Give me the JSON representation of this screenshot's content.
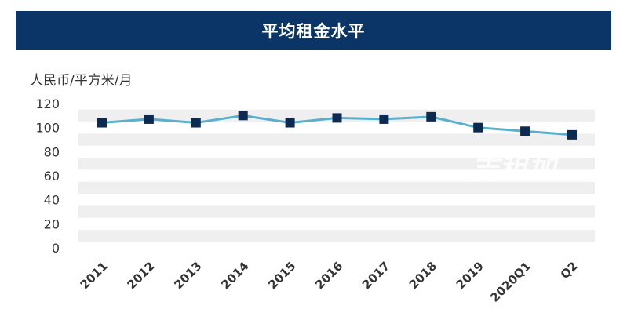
{
  "title": "平均租金水平",
  "unit_label": "人民币/平方米/月",
  "watermark": "吉租加",
  "colors": {
    "title_bg": "#0a3566",
    "line": "#5ab0cc",
    "marker": "#0d2a50",
    "band": "#efefef"
  },
  "chart_data": {
    "type": "line",
    "title": "平均租金水平",
    "ylabel": "人民币/平方米/月",
    "xlabel": "",
    "categories": [
      "2011",
      "2012",
      "2013",
      "2014",
      "2015",
      "2016",
      "2017",
      "2018",
      "2019",
      "2020Q1",
      "Q2"
    ],
    "values": [
      104,
      107,
      104,
      110,
      104,
      108,
      107,
      109,
      100,
      97,
      94
    ],
    "ylim": [
      0,
      120
    ],
    "yticks": [
      0,
      20,
      40,
      60,
      80,
      100,
      120
    ],
    "grid": "horizontal bands",
    "legend": "none"
  }
}
